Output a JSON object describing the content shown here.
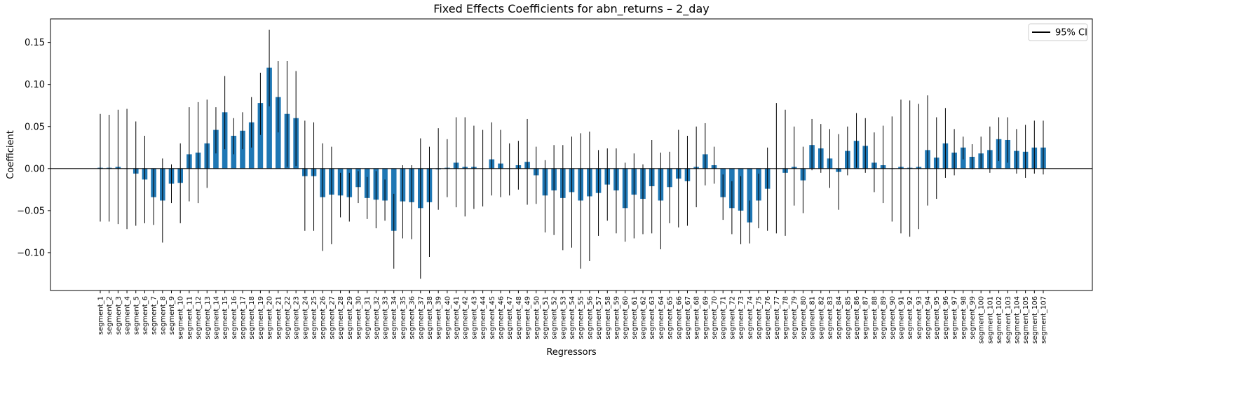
{
  "chart_data": {
    "type": "bar",
    "title": "Fixed Effects Coefficients for abn_returns – 2_day",
    "xlabel": "Regressors",
    "ylabel": "Coefficient",
    "ylim": [
      -0.145,
      0.178
    ],
    "yticks": [
      -0.1,
      -0.05,
      0.0,
      0.05,
      0.1,
      0.15
    ],
    "ytick_labels": [
      "−0.10",
      "−0.05",
      "0.00",
      "0.05",
      "0.10",
      "0.15"
    ],
    "zero_line": true,
    "grid": false,
    "legend": {
      "position": "top-right",
      "entries": [
        {
          "label": "95% CI",
          "color": "#000000"
        }
      ]
    },
    "colors": {
      "bar": "#1f77b4",
      "errorbar": "#000000"
    },
    "categories": [
      "segment_1",
      "segment_2",
      "segment_3",
      "segment_4",
      "segment_5",
      "segment_6",
      "segment_7",
      "segment_8",
      "segment_9",
      "segment_10",
      "segment_11",
      "segment_12",
      "segment_13",
      "segment_14",
      "segment_15",
      "segment_16",
      "segment_17",
      "segment_18",
      "segment_19",
      "segment_20",
      "segment_21",
      "segment_22",
      "segment_23",
      "segment_24",
      "segment_25",
      "segment_26",
      "segment_27",
      "segment_28",
      "segment_29",
      "segment_30",
      "segment_31",
      "segment_32",
      "segment_33",
      "segment_34",
      "segment_35",
      "segment_36",
      "segment_37",
      "segment_38",
      "segment_39",
      "segment_40",
      "segment_41",
      "segment_42",
      "segment_43",
      "segment_44",
      "segment_45",
      "segment_46",
      "segment_47",
      "segment_48",
      "segment_49",
      "segment_50",
      "segment_51",
      "segment_52",
      "segment_53",
      "segment_54",
      "segment_55",
      "segment_56",
      "segment_57",
      "segment_58",
      "segment_59",
      "segment_60",
      "segment_61",
      "segment_62",
      "segment_63",
      "segment_64",
      "segment_65",
      "segment_66",
      "segment_67",
      "segment_68",
      "segment_69",
      "segment_70",
      "segment_71",
      "segment_72",
      "segment_73",
      "segment_74",
      "segment_75",
      "segment_76",
      "segment_77",
      "segment_78",
      "segment_79",
      "segment_80",
      "segment_81",
      "segment_82",
      "segment_83",
      "segment_84",
      "segment_85",
      "segment_86",
      "segment_87",
      "segment_88",
      "segment_89",
      "segment_90",
      "segment_91",
      "segment_92",
      "segment_93",
      "segment_94",
      "segment_95",
      "segment_96",
      "segment_97",
      "segment_98",
      "segment_99",
      "segment_100",
      "segment_101",
      "segment_102",
      "segment_103",
      "segment_104",
      "segment_105",
      "segment_106",
      "segment_107"
    ],
    "values": [
      0.001,
      0.001,
      0.002,
      0.0,
      -0.006,
      -0.013,
      -0.034,
      -0.038,
      -0.018,
      -0.017,
      0.017,
      0.019,
      0.03,
      0.046,
      0.067,
      0.039,
      0.045,
      0.055,
      0.078,
      0.12,
      0.085,
      0.065,
      0.06,
      -0.009,
      -0.009,
      -0.034,
      -0.031,
      -0.032,
      -0.034,
      -0.022,
      -0.035,
      -0.037,
      -0.038,
      -0.074,
      -0.039,
      -0.04,
      -0.047,
      -0.04,
      -0.001,
      0.001,
      0.007,
      0.002,
      0.002,
      0.0,
      0.011,
      0.006,
      0.0,
      0.004,
      0.008,
      -0.008,
      -0.032,
      -0.026,
      -0.035,
      -0.028,
      -0.038,
      -0.033,
      -0.029,
      -0.019,
      -0.026,
      -0.047,
      -0.031,
      -0.036,
      -0.021,
      -0.038,
      -0.022,
      -0.012,
      -0.015,
      0.002,
      0.017,
      0.004,
      -0.034,
      -0.047,
      -0.05,
      -0.064,
      -0.038,
      -0.024,
      0.0,
      -0.005,
      0.002,
      -0.014,
      0.028,
      0.024,
      0.012,
      -0.004,
      0.021,
      0.033,
      0.027,
      0.007,
      0.004,
      0.0,
      0.002,
      0.001,
      0.002,
      0.022,
      0.013,
      0.03,
      0.019,
      0.025,
      0.014,
      0.018,
      0.022,
      0.035,
      0.034,
      0.021,
      0.02,
      0.025,
      0.025
    ],
    "ci_lower": [
      -0.063,
      -0.063,
      -0.066,
      -0.072,
      -0.068,
      -0.065,
      -0.067,
      -0.088,
      -0.041,
      -0.065,
      -0.039,
      -0.041,
      -0.023,
      0.018,
      0.023,
      0.017,
      0.023,
      0.025,
      0.04,
      0.074,
      0.043,
      0.002,
      0.003,
      -0.074,
      -0.074,
      -0.098,
      -0.09,
      -0.058,
      -0.063,
      -0.041,
      -0.06,
      -0.071,
      -0.062,
      -0.119,
      -0.083,
      -0.084,
      -0.131,
      -0.105,
      -0.049,
      -0.034,
      -0.046,
      -0.057,
      -0.048,
      -0.045,
      -0.032,
      -0.034,
      -0.032,
      -0.025,
      -0.043,
      -0.042,
      -0.076,
      -0.079,
      -0.097,
      -0.094,
      -0.119,
      -0.11,
      -0.08,
      -0.062,
      -0.077,
      -0.087,
      -0.083,
      -0.078,
      -0.077,
      -0.096,
      -0.065,
      -0.07,
      -0.068,
      -0.046,
      -0.02,
      -0.018,
      -0.061,
      -0.078,
      -0.09,
      -0.089,
      -0.071,
      -0.074,
      -0.077,
      -0.08,
      -0.044,
      -0.053,
      -0.002,
      -0.005,
      -0.023,
      -0.049,
      -0.008,
      0.001,
      -0.005,
      -0.028,
      -0.041,
      -0.063,
      -0.077,
      -0.081,
      -0.072,
      -0.044,
      -0.036,
      -0.011,
      -0.008,
      0.011,
      -0.001,
      0.0,
      -0.005,
      0.009,
      0.007,
      -0.006,
      -0.011,
      -0.006,
      -0.007
    ],
    "ci_upper": [
      0.065,
      0.064,
      0.07,
      0.071,
      0.056,
      0.039,
      0.0,
      0.012,
      0.005,
      0.03,
      0.073,
      0.079,
      0.082,
      0.073,
      0.11,
      0.06,
      0.067,
      0.085,
      0.114,
      0.165,
      0.128,
      0.128,
      0.116,
      0.057,
      0.055,
      0.03,
      0.026,
      -0.005,
      -0.005,
      -0.003,
      -0.01,
      -0.003,
      -0.013,
      -0.03,
      0.004,
      0.004,
      0.036,
      0.026,
      0.048,
      0.035,
      0.061,
      0.061,
      0.051,
      0.046,
      0.055,
      0.046,
      0.03,
      0.033,
      0.059,
      0.026,
      0.01,
      0.028,
      0.028,
      0.038,
      0.042,
      0.044,
      0.022,
      0.024,
      0.024,
      0.007,
      0.018,
      0.005,
      0.034,
      0.019,
      0.02,
      0.046,
      0.039,
      0.05,
      0.054,
      0.026,
      -0.007,
      -0.015,
      -0.009,
      -0.038,
      -0.006,
      0.025,
      0.078,
      0.07,
      0.05,
      0.026,
      0.059,
      0.053,
      0.047,
      0.041,
      0.05,
      0.066,
      0.06,
      0.043,
      0.051,
      0.062,
      0.082,
      0.081,
      0.077,
      0.087,
      0.061,
      0.072,
      0.047,
      0.038,
      0.029,
      0.038,
      0.05,
      0.061,
      0.061,
      0.047,
      0.052,
      0.057,
      0.057
    ]
  }
}
